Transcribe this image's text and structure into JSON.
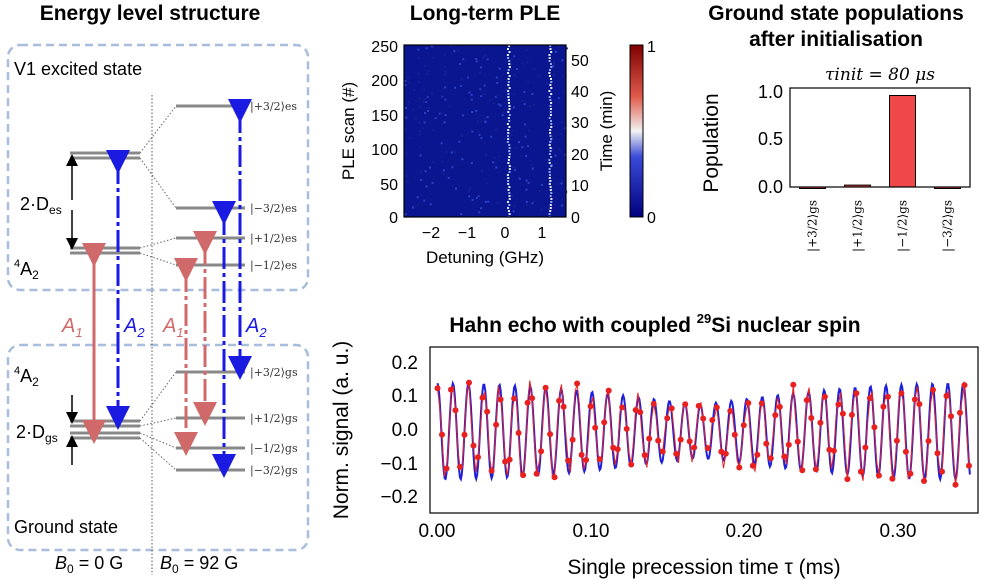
{
  "energy": {
    "title": "Energy level structure",
    "excited_label": "V1 excited state",
    "ground_label": "Ground state",
    "dexcited": "2·D",
    "dexcited_sub": "es",
    "dground": "2·D",
    "dground_sub": "gs",
    "a2_label": "A",
    "a2_sub": "2",
    "a2_sup": "4",
    "trans_A1": "A",
    "trans_A1_sub": "1",
    "trans_A2": "A",
    "trans_A2_sub": "2",
    "b0_left": "B",
    "b0_left_sub": "0",
    "b0_left_val": " = 0 G",
    "b0_right": "B",
    "b0_right_sub": "0",
    "b0_right_val": " = 92 G",
    "es_levels": [
      "|+3/2⟩es",
      "|−3/2⟩es",
      "|+1/2⟩es",
      "|−1/2⟩es"
    ],
    "gs_levels": [
      "|+3/2⟩gs",
      "|+1/2⟩gs",
      "|−1/2⟩gs",
      "|−3/2⟩gs"
    ]
  },
  "ple": {
    "title": "Long-term PLE",
    "ylabel": "PLE scan (#)",
    "y2label": "Time (min)",
    "xlabel": "Detuning (GHz)",
    "yticks": [
      "250",
      "200",
      "150",
      "100",
      "50",
      "0"
    ],
    "y2ticks": [
      "50",
      "40",
      "30",
      "20",
      "10",
      "0"
    ],
    "xticks": [
      "−2",
      "−1",
      "0",
      "1"
    ],
    "cbar_ticks": [
      "1",
      "0"
    ],
    "colors": {
      "low": "#0a0f8a",
      "high": "#8b0000"
    }
  },
  "pop": {
    "title_line1": "Ground state populations",
    "title_line2": "after initialisation",
    "subtitle": "τinit = 80 μs",
    "ylabel": "Population",
    "yticks": [
      "1.0",
      "0.5",
      "0.0"
    ]
  },
  "hahn": {
    "title": "Hahn echo with coupled ",
    "title_sup": "29",
    "title_end": "Si nuclear spin",
    "ylabel": "Norm. signal (a. u.)",
    "xlabel": "Single precession time τ (ms)",
    "yticks": [
      "0.2",
      "0.1",
      "0.0",
      "−0.1",
      "−0.2"
    ],
    "xticks": [
      "0.00",
      "0.10",
      "0.20",
      "0.30"
    ]
  },
  "chart_data": [
    {
      "type": "bar",
      "title": "Ground state populations after initialisation",
      "subtitle": "τinit = 80 μs",
      "ylabel": "Population",
      "categories": [
        "|+3/2⟩gs",
        "|+1/2⟩gs",
        "|−1/2⟩gs",
        "|−3/2⟩gs"
      ],
      "values": [
        0.0,
        0.02,
        0.97,
        0.0
      ],
      "ylim": [
        0,
        1.05
      ],
      "colors": {
        "bar": "#f04848",
        "edge": "#000000"
      }
    },
    {
      "type": "line",
      "title": "Hahn echo with coupled 29Si nuclear spin",
      "xlabel": "Single precession time τ (ms)",
      "ylabel": "Norm. signal (a. u.)",
      "xlim": [
        -0.005,
        0.36
      ],
      "ylim": [
        -0.25,
        0.25
      ],
      "series": [
        {
          "color": "#e82020",
          "period_ms": 0.0103,
          "amplitude": 0.14,
          "offset": -0.04
        },
        {
          "color": "#2020d8",
          "period_ms": 0.0103,
          "amplitude": 0.145,
          "offset": -0.04
        }
      ]
    },
    {
      "type": "heatmap",
      "title": "Long-term PLE",
      "xlabel": "Detuning (GHz)",
      "ylabel": "PLE scan (#)",
      "xlim": [
        -2.5,
        1.4
      ],
      "ylim": [
        0,
        250
      ],
      "line_positions_GHz": [
        0.0,
        1.0
      ],
      "colorbar_range": [
        0,
        1
      ]
    }
  ]
}
